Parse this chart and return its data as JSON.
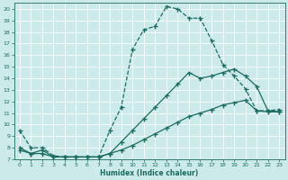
{
  "xlabel": "Humidex (Indice chaleur)",
  "bg_color": "#cceaea",
  "grid_color": "#ffffff",
  "line_color": "#1a6b60",
  "xlim": [
    -0.5,
    23.5
  ],
  "ylim": [
    7,
    20.5
  ],
  "yticks": [
    7,
    8,
    9,
    10,
    11,
    12,
    13,
    14,
    15,
    16,
    17,
    18,
    19,
    20
  ],
  "xticks": [
    0,
    1,
    2,
    3,
    4,
    5,
    6,
    7,
    8,
    9,
    10,
    11,
    12,
    13,
    14,
    15,
    16,
    17,
    18,
    19,
    20,
    21,
    22,
    23
  ],
  "line1_x": [
    0,
    1,
    2,
    3,
    4,
    5,
    6,
    7,
    8,
    9,
    10,
    11,
    12,
    13,
    14,
    15,
    16,
    17,
    18,
    19,
    20,
    21,
    22,
    23
  ],
  "line1_y": [
    9.5,
    8.0,
    8.0,
    7.3,
    7.2,
    7.2,
    7.2,
    7.2,
    9.5,
    11.5,
    16.5,
    18.2,
    18.5,
    20.2,
    20.0,
    19.2,
    19.2,
    17.3,
    15.2,
    14.2,
    13.1,
    11.2,
    11.2,
    11.3
  ],
  "line2_x": [
    0,
    1,
    2,
    3,
    4,
    5,
    6,
    7,
    8,
    9,
    10,
    11,
    12,
    13,
    14,
    15,
    16,
    17,
    18,
    19,
    20,
    21,
    22,
    23
  ],
  "line2_y": [
    8.0,
    7.5,
    7.8,
    7.2,
    7.2,
    7.2,
    7.2,
    7.2,
    7.5,
    8.5,
    9.5,
    10.5,
    11.5,
    12.5,
    13.5,
    14.5,
    14.0,
    14.2,
    14.5,
    14.8,
    14.2,
    13.3,
    11.2,
    11.1
  ],
  "line3_x": [
    0,
    1,
    2,
    3,
    4,
    5,
    6,
    7,
    8,
    9,
    10,
    11,
    12,
    13,
    14,
    15,
    16,
    17,
    18,
    19,
    20,
    21,
    22,
    23
  ],
  "line3_y": [
    7.8,
    7.5,
    7.5,
    7.2,
    7.2,
    7.2,
    7.2,
    7.2,
    7.5,
    7.8,
    8.2,
    8.7,
    9.2,
    9.7,
    10.2,
    10.7,
    11.0,
    11.3,
    11.7,
    11.9,
    12.1,
    11.2,
    11.1,
    11.1
  ]
}
